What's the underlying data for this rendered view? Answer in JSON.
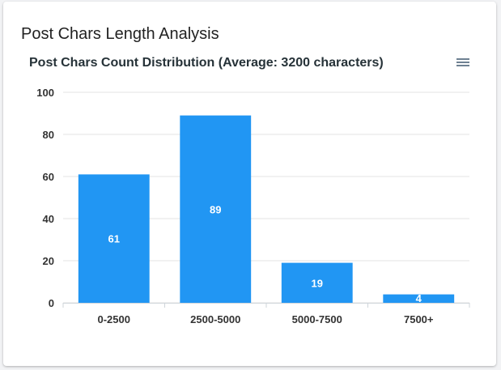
{
  "card": {
    "title": "Post Chars Length Analysis"
  },
  "toolbar": {
    "menu_icon": "hamburger-menu-icon"
  },
  "chart_data": {
    "type": "bar",
    "title": "Post Chars Count Distribution (Average: 3200 characters)",
    "categories": [
      "0-2500",
      "2500-5000",
      "5000-7500",
      "7500+"
    ],
    "values": [
      61,
      89,
      19,
      4
    ],
    "xlabel": "",
    "ylabel": "",
    "ylim": [
      0,
      100
    ],
    "yticks": [
      0,
      20,
      40,
      60,
      80,
      100
    ],
    "grid": true,
    "data_labels": true,
    "bar_color": "#2196f3"
  }
}
